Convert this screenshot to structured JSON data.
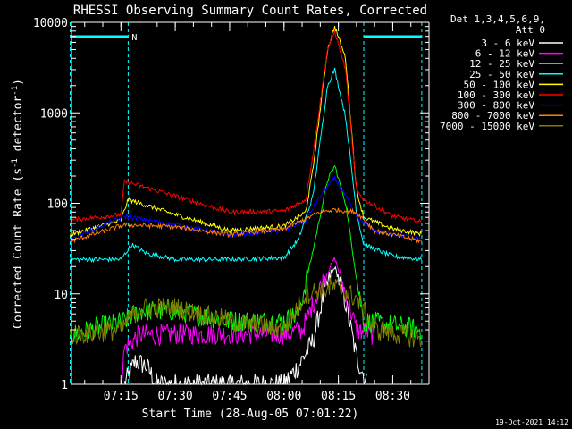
{
  "chart_data": {
    "type": "line",
    "title": "RHESSI Observing Summary Count Rates, Corrected",
    "xlabel": "Start Time (28-Aug-05 07:01:22)",
    "ylabel_prefix": "Corrected Count Rate (s",
    "ylabel_sup1": "-1",
    "ylabel_mid": " detector",
    "ylabel_sup2": "-1",
    "ylabel_suffix": ")",
    "y_scale": "log",
    "xlim": [
      "07:01:22",
      "08:40"
    ],
    "ylim": [
      1,
      10000
    ],
    "xticks": [
      "07:15",
      "07:30",
      "07:45",
      "08:00",
      "08:15",
      "08:30"
    ],
    "yticks": [
      "1",
      "10",
      "100",
      "1000",
      "10000"
    ],
    "grid": false,
    "legend_position": "right",
    "legend_header": [
      "Det 1,3,4,5,6,9,",
      "Att 0"
    ],
    "timestamp": "19-Oct-2021 14:12",
    "annotations": [
      {
        "text": "N",
        "at": "07:17"
      }
    ],
    "night_intervals": [
      [
        "07:01",
        "07:17"
      ],
      [
        "08:22",
        "08:38"
      ]
    ],
    "series": [
      {
        "name": "3 - 6 keV",
        "color": "#ffffff",
        "points": [
          [
            "07:16",
            1
          ],
          [
            "07:19",
            1.8
          ],
          [
            "07:22",
            1.6
          ],
          [
            "07:25",
            1
          ],
          [
            "08:00",
            1
          ],
          [
            "08:04",
            1.6
          ],
          [
            "08:08",
            3
          ],
          [
            "08:11",
            10
          ],
          [
            "08:14",
            20
          ],
          [
            "08:17",
            8
          ],
          [
            "08:20",
            2
          ],
          [
            "08:23",
            1
          ]
        ]
      },
      {
        "name": "6 - 12 keV",
        "color": "#ff00ff",
        "points": [
          [
            "07:15",
            1
          ],
          [
            "07:16",
            2.5
          ],
          [
            "07:20",
            3.5
          ],
          [
            "07:30",
            3.6
          ],
          [
            "07:45",
            3.6
          ],
          [
            "08:00",
            3.6
          ],
          [
            "08:05",
            4
          ],
          [
            "08:10",
            12
          ],
          [
            "08:14",
            25
          ],
          [
            "08:17",
            10
          ],
          [
            "08:20",
            4
          ],
          [
            "08:25",
            3.5
          ]
        ]
      },
      {
        "name": "12 - 25 keV",
        "color": "#00ff00",
        "points": [
          [
            "07:01",
            3.5
          ],
          [
            "07:16",
            5
          ],
          [
            "07:20",
            6.5
          ],
          [
            "07:30",
            6.5
          ],
          [
            "07:45",
            5
          ],
          [
            "08:00",
            5
          ],
          [
            "08:04",
            6
          ],
          [
            "08:08",
            30
          ],
          [
            "08:12",
            180
          ],
          [
            "08:14",
            260
          ],
          [
            "08:17",
            100
          ],
          [
            "08:20",
            15
          ],
          [
            "08:22",
            5
          ],
          [
            "08:38",
            4
          ]
        ]
      },
      {
        "name": "25 - 50 keV",
        "color": "#00ffff",
        "points": [
          [
            "07:01",
            24
          ],
          [
            "07:15",
            24
          ],
          [
            "07:18",
            35
          ],
          [
            "07:22",
            28
          ],
          [
            "07:30",
            24
          ],
          [
            "07:45",
            24
          ],
          [
            "08:00",
            25
          ],
          [
            "08:04",
            40
          ],
          [
            "08:08",
            120
          ],
          [
            "08:12",
            2000
          ],
          [
            "08:14",
            3000
          ],
          [
            "08:17",
            900
          ],
          [
            "08:20",
            80
          ],
          [
            "08:22",
            35
          ],
          [
            "08:30",
            26
          ],
          [
            "08:38",
            24
          ]
        ]
      },
      {
        "name": "50 - 100 keV",
        "color": "#ffff00",
        "points": [
          [
            "07:01",
            45
          ],
          [
            "07:15",
            65
          ],
          [
            "07:17",
            110
          ],
          [
            "07:30",
            75
          ],
          [
            "07:45",
            50
          ],
          [
            "08:00",
            56
          ],
          [
            "08:06",
            80
          ],
          [
            "08:08",
            240
          ],
          [
            "08:12",
            5000
          ],
          [
            "08:14",
            9000
          ],
          [
            "08:17",
            4000
          ],
          [
            "08:20",
            140
          ],
          [
            "08:22",
            70
          ],
          [
            "08:30",
            52
          ],
          [
            "08:38",
            46
          ]
        ]
      },
      {
        "name": "100 - 300 keV",
        "color": "#ff0000",
        "points": [
          [
            "07:01",
            65
          ],
          [
            "07:15",
            75
          ],
          [
            "07:16",
            175
          ],
          [
            "07:30",
            120
          ],
          [
            "07:45",
            80
          ],
          [
            "08:00",
            82
          ],
          [
            "08:06",
            110
          ],
          [
            "08:08",
            350
          ],
          [
            "08:12",
            5000
          ],
          [
            "08:14",
            8000
          ],
          [
            "08:17",
            3000
          ],
          [
            "08:20",
            140
          ],
          [
            "08:22",
            110
          ],
          [
            "08:30",
            72
          ],
          [
            "08:38",
            62
          ]
        ]
      },
      {
        "name": "300 - 800 keV",
        "color": "#0000ff",
        "points": [
          [
            "07:01",
            40
          ],
          [
            "07:16",
            72
          ],
          [
            "07:30",
            58
          ],
          [
            "07:45",
            45
          ],
          [
            "08:00",
            50
          ],
          [
            "08:06",
            65
          ],
          [
            "08:10",
            120
          ],
          [
            "08:14",
            190
          ],
          [
            "08:17",
            120
          ],
          [
            "08:20",
            70
          ],
          [
            "08:25",
            50
          ],
          [
            "08:38",
            40
          ]
        ]
      },
      {
        "name": "800 - 7000 keV",
        "color": "#ff8000",
        "points": [
          [
            "07:01",
            38
          ],
          [
            "07:16",
            58
          ],
          [
            "07:30",
            55
          ],
          [
            "07:45",
            45
          ],
          [
            "08:00",
            52
          ],
          [
            "08:10",
            80
          ],
          [
            "08:14",
            85
          ],
          [
            "08:20",
            80
          ],
          [
            "08:25",
            50
          ],
          [
            "08:38",
            38
          ]
        ]
      },
      {
        "name": "7000 - 15000 keV",
        "color": "#808000",
        "points": [
          [
            "07:01",
            3.5
          ],
          [
            "07:15",
            4
          ],
          [
            "07:20",
            7
          ],
          [
            "07:30",
            7
          ],
          [
            "07:45",
            5
          ],
          [
            "08:00",
            4
          ],
          [
            "08:06",
            10
          ],
          [
            "08:14",
            12
          ],
          [
            "08:20",
            9
          ],
          [
            "08:25",
            4
          ],
          [
            "08:38",
            3.2
          ]
        ]
      }
    ]
  }
}
